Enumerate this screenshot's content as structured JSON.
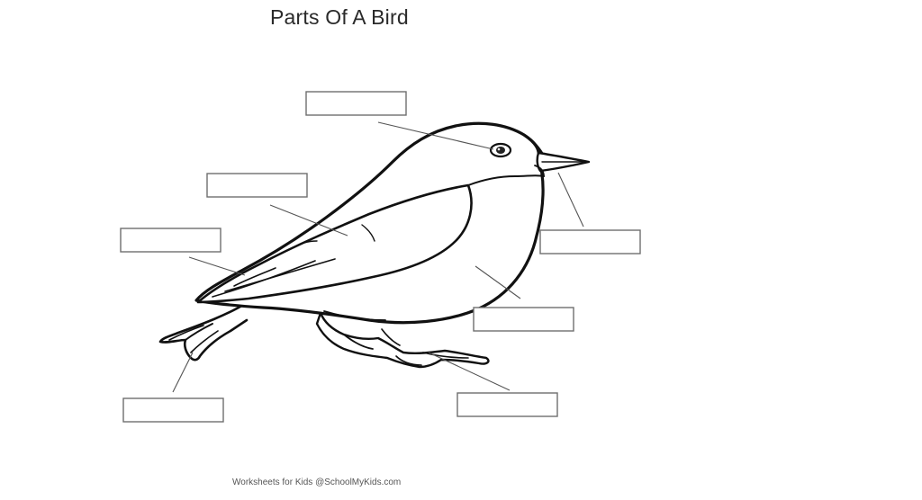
{
  "worksheet": {
    "title": "Parts Of A Bird",
    "footer_prefix": "Worksheets for Kids ",
    "footer_site": "@SchoolMyKids.com"
  },
  "label_boxes": [
    {
      "id": "eye",
      "value": ""
    },
    {
      "id": "beak",
      "value": ""
    },
    {
      "id": "wing",
      "value": ""
    },
    {
      "id": "back",
      "value": ""
    },
    {
      "id": "breast",
      "value": ""
    },
    {
      "id": "tail",
      "value": ""
    },
    {
      "id": "feet",
      "value": ""
    }
  ]
}
